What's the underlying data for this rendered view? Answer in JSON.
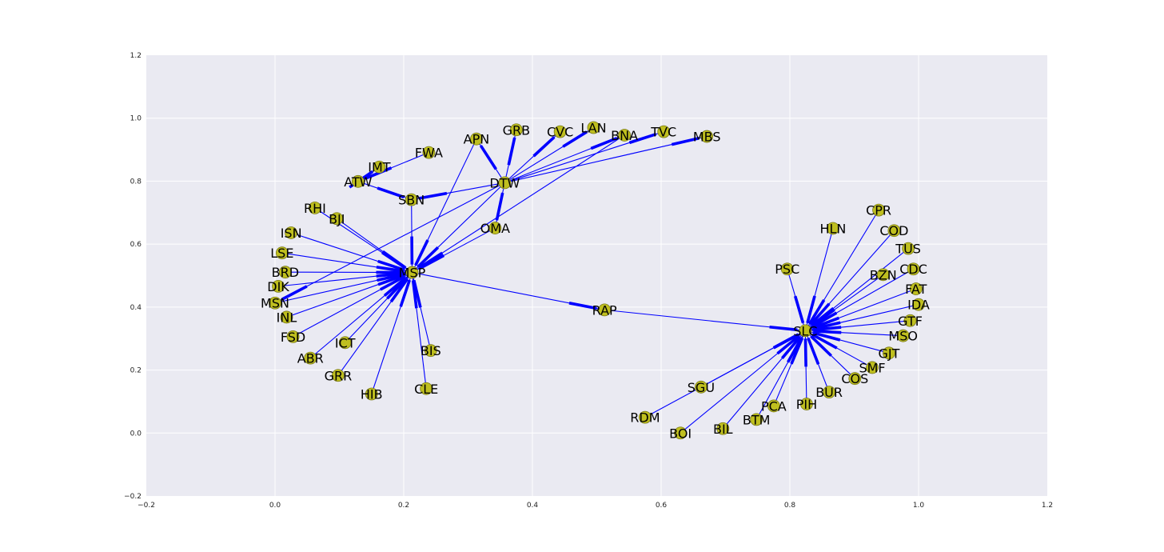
{
  "chart_data": {
    "type": "network",
    "xlim": [
      -0.2,
      1.2
    ],
    "ylim": [
      -0.2,
      1.2
    ],
    "x_ticks": [
      "−0.2",
      "0.0",
      "0.2",
      "0.4",
      "0.6",
      "0.8",
      "1.0",
      "1.2"
    ],
    "y_ticks": [
      "−0.2",
      "0.0",
      "0.2",
      "0.4",
      "0.6",
      "0.8",
      "1.0",
      "1.2"
    ],
    "x_tick_values": [
      -0.2,
      0.0,
      0.2,
      0.4,
      0.6,
      0.8,
      1.0,
      1.2
    ],
    "y_tick_values": [
      -0.2,
      0.0,
      0.2,
      0.4,
      0.6,
      0.8,
      1.0,
      1.2
    ],
    "grid": true,
    "nodes": [
      {
        "id": "MSP",
        "x": 0.213,
        "y": 0.51
      },
      {
        "id": "DTW",
        "x": 0.357,
        "y": 0.795
      },
      {
        "id": "SLC",
        "x": 0.824,
        "y": 0.325
      },
      {
        "id": "RAP",
        "x": 0.512,
        "y": 0.391
      },
      {
        "id": "APN",
        "x": 0.313,
        "y": 0.934
      },
      {
        "id": "GRB",
        "x": 0.375,
        "y": 0.963
      },
      {
        "id": "CVC",
        "x": 0.443,
        "y": 0.957
      },
      {
        "id": "LAN",
        "x": 0.495,
        "y": 0.97
      },
      {
        "id": "BNA",
        "x": 0.543,
        "y": 0.946
      },
      {
        "id": "TVC",
        "x": 0.604,
        "y": 0.957
      },
      {
        "id": "MBS",
        "x": 0.671,
        "y": 0.942
      },
      {
        "id": "FWA",
        "x": 0.239,
        "y": 0.891
      },
      {
        "id": "IMT",
        "x": 0.162,
        "y": 0.845
      },
      {
        "id": "ATW",
        "x": 0.129,
        "y": 0.799
      },
      {
        "id": "SBN",
        "x": 0.212,
        "y": 0.741
      },
      {
        "id": "RHI",
        "x": 0.062,
        "y": 0.715
      },
      {
        "id": "BJI",
        "x": 0.096,
        "y": 0.681
      },
      {
        "id": "OMA",
        "x": 0.342,
        "y": 0.651
      },
      {
        "id": "ISN",
        "x": 0.025,
        "y": 0.636
      },
      {
        "id": "LSE",
        "x": 0.011,
        "y": 0.572
      },
      {
        "id": "BRD",
        "x": 0.016,
        "y": 0.511
      },
      {
        "id": "DIK",
        "x": 0.005,
        "y": 0.466
      },
      {
        "id": "MSN",
        "x": 0.0,
        "y": 0.413
      },
      {
        "id": "INL",
        "x": 0.018,
        "y": 0.368
      },
      {
        "id": "FSD",
        "x": 0.028,
        "y": 0.306
      },
      {
        "id": "ICT",
        "x": 0.109,
        "y": 0.287
      },
      {
        "id": "ABR",
        "x": 0.055,
        "y": 0.238
      },
      {
        "id": "GRR",
        "x": 0.098,
        "y": 0.183
      },
      {
        "id": "HIB",
        "x": 0.15,
        "y": 0.124
      },
      {
        "id": "BIS",
        "x": 0.242,
        "y": 0.262
      },
      {
        "id": "CLE",
        "x": 0.235,
        "y": 0.141
      },
      {
        "id": "HLN",
        "x": 0.867,
        "y": 0.65
      },
      {
        "id": "CPR",
        "x": 0.938,
        "y": 0.708
      },
      {
        "id": "COD",
        "x": 0.962,
        "y": 0.643
      },
      {
        "id": "TUS",
        "x": 0.984,
        "y": 0.586
      },
      {
        "id": "CDC",
        "x": 0.992,
        "y": 0.521
      },
      {
        "id": "FAT",
        "x": 0.996,
        "y": 0.458
      },
      {
        "id": "IDA",
        "x": 1.0,
        "y": 0.408
      },
      {
        "id": "GTF",
        "x": 0.987,
        "y": 0.357
      },
      {
        "id": "MSO",
        "x": 0.976,
        "y": 0.309
      },
      {
        "id": "GJT",
        "x": 0.954,
        "y": 0.254
      },
      {
        "id": "SMF",
        "x": 0.928,
        "y": 0.208
      },
      {
        "id": "COS",
        "x": 0.901,
        "y": 0.173
      },
      {
        "id": "BUR",
        "x": 0.861,
        "y": 0.13
      },
      {
        "id": "PIH",
        "x": 0.826,
        "y": 0.092
      },
      {
        "id": "PCA",
        "x": 0.775,
        "y": 0.086
      },
      {
        "id": "BTM",
        "x": 0.748,
        "y": 0.043
      },
      {
        "id": "BIL",
        "x": 0.696,
        "y": 0.014
      },
      {
        "id": "BOI",
        "x": 0.63,
        "y": 0.0
      },
      {
        "id": "RDM",
        "x": 0.575,
        "y": 0.05
      },
      {
        "id": "SGU",
        "x": 0.662,
        "y": 0.146
      },
      {
        "id": "BZN",
        "x": 0.945,
        "y": 0.503
      },
      {
        "id": "PSC",
        "x": 0.796,
        "y": 0.521
      }
    ],
    "edges": [
      [
        "DTW",
        "APN"
      ],
      [
        "DTW",
        "GRB"
      ],
      [
        "DTW",
        "CVC"
      ],
      [
        "DTW",
        "LAN"
      ],
      [
        "DTW",
        "BNA"
      ],
      [
        "DTW",
        "TVC"
      ],
      [
        "DTW",
        "MBS"
      ],
      [
        "DTW",
        "SBN"
      ],
      [
        "DTW",
        "OMA"
      ],
      [
        "DTW",
        "MSP"
      ],
      [
        "FWA",
        "ATW"
      ],
      [
        "ATW",
        "IMT"
      ],
      [
        "ATW",
        "SBN"
      ],
      [
        "APN",
        "MSP"
      ],
      [
        "DTW",
        "MSN"
      ],
      [
        "RHI",
        "MSP"
      ],
      [
        "BJI",
        "MSP"
      ],
      [
        "ISN",
        "MSP"
      ],
      [
        "LSE",
        "MSP"
      ],
      [
        "BRD",
        "MSP"
      ],
      [
        "DIK",
        "MSP"
      ],
      [
        "MSN",
        "MSP"
      ],
      [
        "INL",
        "MSP"
      ],
      [
        "FSD",
        "MSP"
      ],
      [
        "ICT",
        "MSP"
      ],
      [
        "ABR",
        "MSP"
      ],
      [
        "GRR",
        "MSP"
      ],
      [
        "HIB",
        "MSP"
      ],
      [
        "BIS",
        "MSP"
      ],
      [
        "CLE",
        "MSP"
      ],
      [
        "OMA",
        "MSP"
      ],
      [
        "SBN",
        "MSP"
      ],
      [
        "MSP",
        "RAP"
      ],
      [
        "RAP",
        "SLC"
      ],
      [
        "BNA",
        "MSP"
      ],
      [
        "HLN",
        "SLC"
      ],
      [
        "CPR",
        "SLC"
      ],
      [
        "COD",
        "SLC"
      ],
      [
        "TUS",
        "SLC"
      ],
      [
        "CDC",
        "SLC"
      ],
      [
        "FAT",
        "SLC"
      ],
      [
        "IDA",
        "SLC"
      ],
      [
        "GTF",
        "SLC"
      ],
      [
        "MSO",
        "SLC"
      ],
      [
        "GJT",
        "SLC"
      ],
      [
        "SMF",
        "SLC"
      ],
      [
        "COS",
        "SLC"
      ],
      [
        "BUR",
        "SLC"
      ],
      [
        "PIH",
        "SLC"
      ],
      [
        "PCA",
        "SLC"
      ],
      [
        "BTM",
        "SLC"
      ],
      [
        "BIL",
        "SLC"
      ],
      [
        "BOI",
        "SLC"
      ],
      [
        "RDM",
        "SLC"
      ],
      [
        "SGU",
        "SLC"
      ],
      [
        "BZN",
        "SLC"
      ],
      [
        "PSC",
        "SLC"
      ]
    ],
    "colors": {
      "background": "#eaeaf2",
      "grid": "#ffffff",
      "node_fill": "#bfbf1f",
      "node_edge": "#7a7a1a",
      "edge": "#0000ff",
      "label": "#000000"
    }
  }
}
